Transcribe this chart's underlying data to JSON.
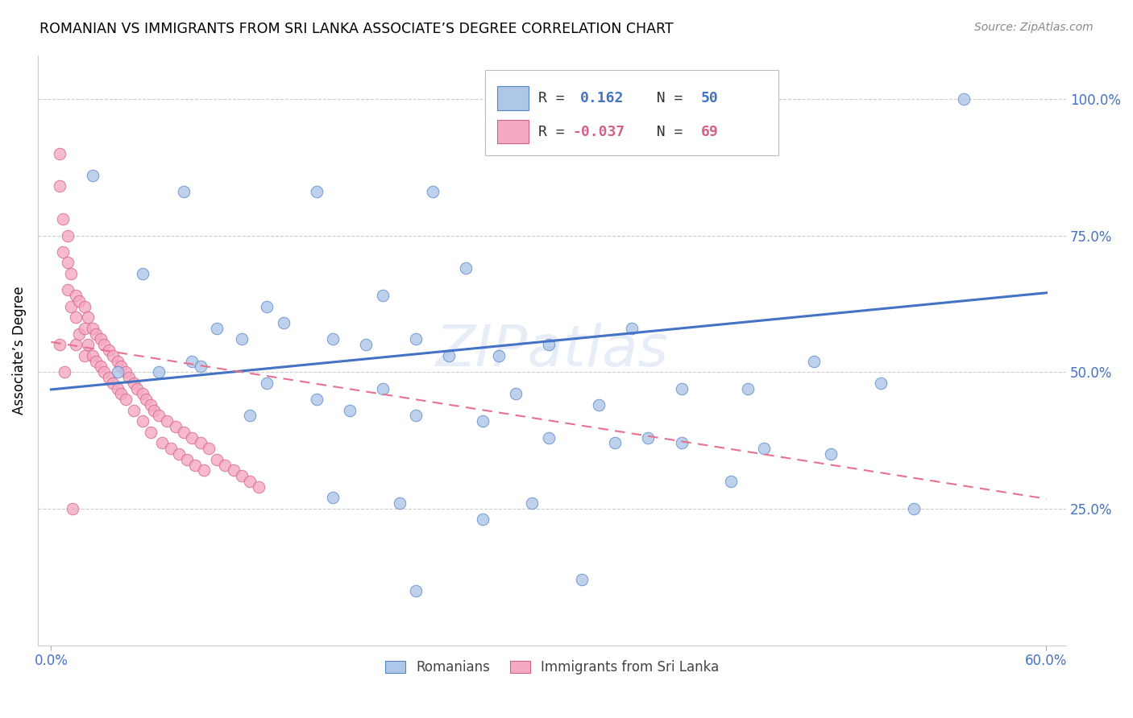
{
  "title": "ROMANIAN VS IMMIGRANTS FROM SRI LANKA ASSOCIATE’S DEGREE CORRELATION CHART",
  "source": "Source: ZipAtlas.com",
  "ylabel": "Associate’s Degree",
  "ytick_labels": [
    "25.0%",
    "50.0%",
    "75.0%",
    "100.0%"
  ],
  "ytick_values": [
    0.25,
    0.5,
    0.75,
    1.0
  ],
  "xlim": [
    0.0,
    0.6
  ],
  "ylim": [
    0.0,
    1.08
  ],
  "legend_rom_R": "0.162",
  "legend_rom_N": "50",
  "legend_sri_R": "-0.037",
  "legend_sri_N": "69",
  "romanian_color": "#aec6e8",
  "srilanka_color": "#f5a8c0",
  "romanian_line_color": "#4472c4",
  "srilanka_line_color": "#e87090",
  "watermark": "ZIPatlas",
  "rom_line_x0": 0.0,
  "rom_line_y0": 0.468,
  "rom_line_x1": 0.6,
  "rom_line_y1": 0.645,
  "sri_line_x0": 0.0,
  "sri_line_y0": 0.555,
  "sri_line_x1": 0.6,
  "sri_line_y1": 0.268,
  "romanian_x": [
    0.025,
    0.08,
    0.16,
    0.23,
    0.055,
    0.085,
    0.1,
    0.13,
    0.17,
    0.2,
    0.25,
    0.04,
    0.065,
    0.09,
    0.115,
    0.14,
    0.19,
    0.22,
    0.27,
    0.3,
    0.33,
    0.28,
    0.35,
    0.38,
    0.42,
    0.46,
    0.5,
    0.16,
    0.2,
    0.24,
    0.13,
    0.18,
    0.22,
    0.26,
    0.3,
    0.34,
    0.38,
    0.43,
    0.47,
    0.52,
    0.12,
    0.17,
    0.21,
    0.29,
    0.36,
    0.41,
    0.26,
    0.32,
    0.22,
    0.55
  ],
  "romanian_y": [
    0.86,
    0.83,
    0.83,
    0.83,
    0.68,
    0.52,
    0.58,
    0.62,
    0.56,
    0.64,
    0.69,
    0.5,
    0.5,
    0.51,
    0.56,
    0.59,
    0.55,
    0.56,
    0.53,
    0.55,
    0.44,
    0.46,
    0.58,
    0.47,
    0.47,
    0.52,
    0.48,
    0.45,
    0.47,
    0.53,
    0.48,
    0.43,
    0.42,
    0.41,
    0.38,
    0.37,
    0.37,
    0.36,
    0.35,
    0.25,
    0.42,
    0.27,
    0.26,
    0.26,
    0.38,
    0.3,
    0.23,
    0.12,
    0.1,
    1.0
  ],
  "srilanka_x": [
    0.005,
    0.005,
    0.007,
    0.007,
    0.01,
    0.01,
    0.01,
    0.012,
    0.012,
    0.015,
    0.015,
    0.015,
    0.017,
    0.017,
    0.02,
    0.02,
    0.02,
    0.022,
    0.022,
    0.025,
    0.025,
    0.027,
    0.027,
    0.03,
    0.03,
    0.032,
    0.032,
    0.035,
    0.035,
    0.037,
    0.037,
    0.04,
    0.04,
    0.042,
    0.042,
    0.045,
    0.045,
    0.047,
    0.05,
    0.05,
    0.052,
    0.055,
    0.055,
    0.057,
    0.06,
    0.06,
    0.062,
    0.065,
    0.067,
    0.07,
    0.072,
    0.075,
    0.077,
    0.08,
    0.082,
    0.085,
    0.087,
    0.09,
    0.092,
    0.095,
    0.1,
    0.105,
    0.11,
    0.115,
    0.12,
    0.125,
    0.005,
    0.008,
    0.013
  ],
  "srilanka_y": [
    0.9,
    0.84,
    0.78,
    0.72,
    0.75,
    0.7,
    0.65,
    0.68,
    0.62,
    0.64,
    0.6,
    0.55,
    0.63,
    0.57,
    0.62,
    0.58,
    0.53,
    0.6,
    0.55,
    0.58,
    0.53,
    0.57,
    0.52,
    0.56,
    0.51,
    0.55,
    0.5,
    0.54,
    0.49,
    0.53,
    0.48,
    0.52,
    0.47,
    0.51,
    0.46,
    0.5,
    0.45,
    0.49,
    0.48,
    0.43,
    0.47,
    0.46,
    0.41,
    0.45,
    0.44,
    0.39,
    0.43,
    0.42,
    0.37,
    0.41,
    0.36,
    0.4,
    0.35,
    0.39,
    0.34,
    0.38,
    0.33,
    0.37,
    0.32,
    0.36,
    0.34,
    0.33,
    0.32,
    0.31,
    0.3,
    0.29,
    0.55,
    0.5,
    0.25
  ]
}
